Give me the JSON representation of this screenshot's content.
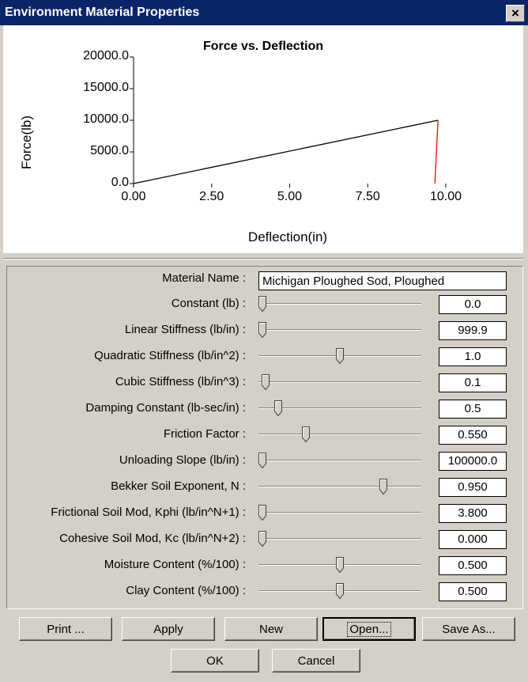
{
  "window": {
    "title": "Environment Material Properties",
    "close_glyph": "×"
  },
  "chart_data": {
    "type": "line",
    "title": "Force vs. Deflection",
    "xlabel": "Deflection(in)",
    "ylabel": "Force(lb)",
    "xlim": [
      0,
      10
    ],
    "ylim": [
      0,
      20000
    ],
    "xticks": [
      "0.00",
      "2.50",
      "5.00",
      "7.50",
      "10.00"
    ],
    "yticks": [
      "20000.0",
      "15000.0",
      "10000.0",
      "5000.0",
      "0.0"
    ],
    "grid": false,
    "series": [
      {
        "color": "#000000",
        "x": [
          0,
          9.75
        ],
        "y": [
          0,
          9999
        ]
      },
      {
        "color": "#ff0000",
        "x": [
          9.75,
          9.65
        ],
        "y": [
          9999,
          0
        ]
      }
    ]
  },
  "form": {
    "material_name_label": "Material Name :",
    "material_name_value": "Michigan Ploughed Sod, Ploughed",
    "rows": [
      {
        "label": "Constant (lb) :",
        "value": "0.0",
        "slider": 0.0
      },
      {
        "label": "Linear Stiffness (lb/in) :",
        "value": "999.9",
        "slider": 0.0
      },
      {
        "label": "Quadratic Stiffness (lb/in^2) :",
        "value": "1.0",
        "slider": 0.5
      },
      {
        "label": "Cubic Stiffness (lb/in^3) :",
        "value": "0.1",
        "slider": 0.02
      },
      {
        "label": "Damping Constant (lb-sec/in) :",
        "value": "0.5",
        "slider": 0.1
      },
      {
        "label": "Friction Factor :",
        "value": "0.550",
        "slider": 0.28
      },
      {
        "label": "Unloading Slope (lb/in) :",
        "value": "100000.0",
        "slider": 0.0
      },
      {
        "label": "Bekker Soil Exponent, N :",
        "value": "0.950",
        "slider": 0.78
      },
      {
        "label": "Frictional Soil Mod, Kphi (lb/in^N+1) :",
        "value": "3.800",
        "slider": 0.0
      },
      {
        "label": "Cohesive Soil Mod, Kc (lb/in^N+2) :",
        "value": "0.000",
        "slider": 0.0
      },
      {
        "label": "Moisture Content (%/100) :",
        "value": "0.500",
        "slider": 0.5
      },
      {
        "label": "Clay Content (%/100) :",
        "value": "0.500",
        "slider": 0.5
      }
    ]
  },
  "buttons": {
    "print": "Print ...",
    "apply": "Apply",
    "new": "New",
    "open": "Open...",
    "save_as": "Save As...",
    "ok": "OK",
    "cancel": "Cancel"
  }
}
